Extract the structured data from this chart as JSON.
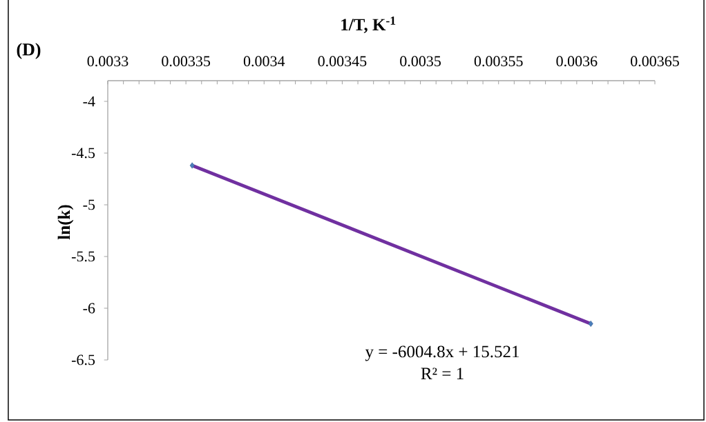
{
  "chart_data": {
    "type": "scatter",
    "title": "(D)",
    "xlabel": "1/T, K$^{-1}$",
    "ylabel": "ln(k)",
    "annotations": [
      "y = -6004.8x + 15.521",
      "R² = 1"
    ],
    "x": [
      0.003354,
      0.003609
    ],
    "series": [
      {
        "type": "line",
        "color": "#7030a0",
        "marker": "none",
        "line_style": "solid",
        "values": [
          -4.62,
          -6.15
        ]
      },
      {
        "type": "scatter",
        "color": "#4a7ebb",
        "marker": "diamond",
        "values": [
          -4.62,
          -6.15
        ]
      }
    ],
    "xlim": [
      0.0033,
      0.00365
    ],
    "ylim": [
      -6.5,
      -3.8
    ],
    "xticks": [
      0.0033,
      {
        "value": 0.00331,
        "label": null
      },
      {
        "value": 0.00332,
        "label": null
      },
      {
        "value": 0.00333,
        "label": null
      },
      {
        "value": 0.00334,
        "label": null
      },
      0.00335,
      {
        "value": 0.00336,
        "label": null
      },
      {
        "value": 0.00337,
        "label": null
      },
      {
        "value": 0.00338,
        "label": null
      },
      {
        "value": 0.00339,
        "label": null
      },
      0.0034,
      {
        "value": 0.00341,
        "label": null
      },
      {
        "value": 0.00342,
        "label": null
      },
      {
        "value": 0.00343,
        "label": null
      },
      {
        "value": 0.00344,
        "label": null
      },
      0.00345,
      {
        "value": 0.00346,
        "label": null
      },
      {
        "value": 0.00347,
        "label": null
      },
      {
        "value": 0.00348,
        "label": null
      },
      {
        "value": 0.00349,
        "label": null
      },
      0.0035,
      {
        "value": 0.00351,
        "label": null
      },
      {
        "value": 0.00352,
        "label": null
      },
      {
        "value": 0.00353,
        "label": null
      },
      {
        "value": 0.00354,
        "label": null
      },
      0.00355,
      {
        "value": 0.00356,
        "label": null
      },
      {
        "value": 0.00357,
        "label": null
      },
      {
        "value": 0.00358,
        "label": null
      },
      {
        "value": 0.00359,
        "label": null
      },
      0.0036,
      {
        "value": 0.00361,
        "label": null
      },
      {
        "value": 0.00362,
        "label": null
      },
      {
        "value": 0.00363,
        "label": null
      },
      {
        "value": 0.00364,
        "label": null
      },
      0.00365
    ],
    "yticks": [
      -4,
      -4.5,
      -5,
      -5.5,
      -6,
      -6.5
    ],
    "grid": false
  }
}
